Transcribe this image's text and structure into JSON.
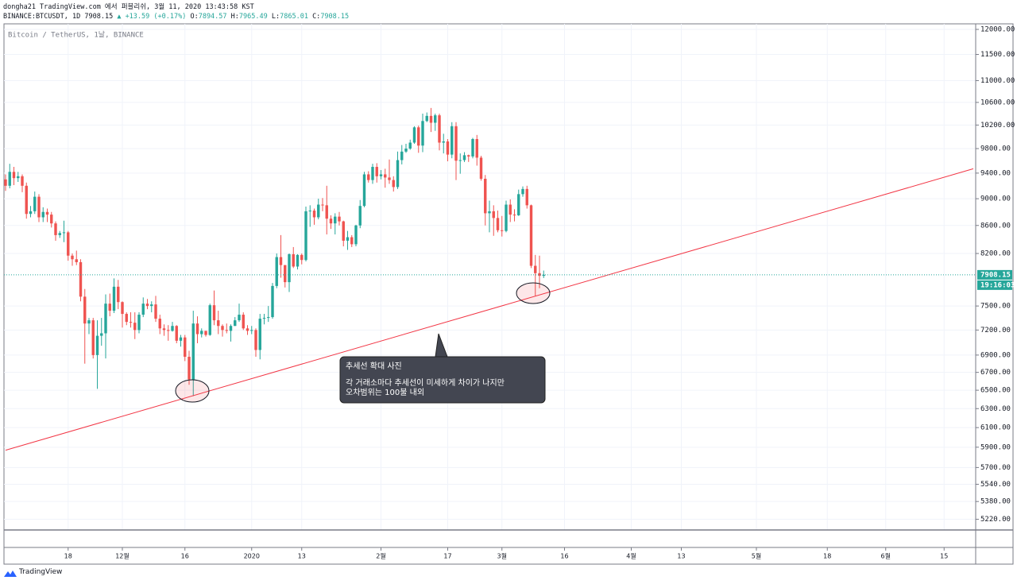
{
  "header": {
    "published": "dongha21 TradingView.com 에서 퍼블리쉬, 3월 11, 2020 13:43:58 KST",
    "symbol": "BINANCE:BTCUSDT, 1D",
    "arrow": "▲",
    "change": "+13.59 (+0.17%)",
    "ohlc_labels": [
      "O:",
      "H:",
      "L:",
      "C:"
    ]
  },
  "logo": "TradingView",
  "annotation": {
    "title": "추세선 확대 사진",
    "lines": [
      "각 거래소마다 추세선이 미세하게 차이가 나지만",
      "오차범위는 100불 내외"
    ]
  },
  "chart_data": {
    "type": "candlestick",
    "title": "Bitcoin / TetherUS, 1날, BINANCE",
    "countdown": "19:16:03",
    "up_color": "#26a69a",
    "down_color": "#ef5350",
    "log_scale": true,
    "grid": true,
    "x": [
      "2019-11-03",
      "2019-11-04",
      "2019-11-05",
      "2019-11-06",
      "2019-11-07",
      "2019-11-08",
      "2019-11-09",
      "2019-11-10",
      "2019-11-11",
      "2019-11-12",
      "2019-11-13",
      "2019-11-14",
      "2019-11-15",
      "2019-11-16",
      "2019-11-17",
      "2019-11-18",
      "2019-11-19",
      "2019-11-20",
      "2019-11-21",
      "2019-11-22",
      "2019-11-23",
      "2019-11-24",
      "2019-11-25",
      "2019-11-26",
      "2019-11-27",
      "2019-11-28",
      "2019-11-29",
      "2019-11-30",
      "2019-12-01",
      "2019-12-02",
      "2019-12-03",
      "2019-12-04",
      "2019-12-05",
      "2019-12-06",
      "2019-12-07",
      "2019-12-08",
      "2019-12-09",
      "2019-12-10",
      "2019-12-11",
      "2019-12-12",
      "2019-12-13",
      "2019-12-14",
      "2019-12-15",
      "2019-12-16",
      "2019-12-17",
      "2019-12-18",
      "2019-12-19",
      "2019-12-20",
      "2019-12-21",
      "2019-12-22",
      "2019-12-23",
      "2019-12-24",
      "2019-12-25",
      "2019-12-26",
      "2019-12-27",
      "2019-12-28",
      "2019-12-29",
      "2019-12-30",
      "2019-12-31",
      "2020-01-01",
      "2020-01-02",
      "2020-01-03",
      "2020-01-04",
      "2020-01-05",
      "2020-01-06",
      "2020-01-07",
      "2020-01-08",
      "2020-01-09",
      "2020-01-10",
      "2020-01-11",
      "2020-01-12",
      "2020-01-13",
      "2020-01-14",
      "2020-01-15",
      "2020-01-16",
      "2020-01-17",
      "2020-01-18",
      "2020-01-19",
      "2020-01-20",
      "2020-01-21",
      "2020-01-22",
      "2020-01-23",
      "2020-01-24",
      "2020-01-25",
      "2020-01-26",
      "2020-01-27",
      "2020-01-28",
      "2020-01-29",
      "2020-01-30",
      "2020-01-31",
      "2020-02-01",
      "2020-02-02",
      "2020-02-03",
      "2020-02-04",
      "2020-02-05",
      "2020-02-06",
      "2020-02-07",
      "2020-02-08",
      "2020-02-09",
      "2020-02-10",
      "2020-02-11",
      "2020-02-12",
      "2020-02-13",
      "2020-02-14",
      "2020-02-15",
      "2020-02-16",
      "2020-02-17",
      "2020-02-18",
      "2020-02-19",
      "2020-02-20",
      "2020-02-21",
      "2020-02-22",
      "2020-02-23",
      "2020-02-24",
      "2020-02-25",
      "2020-02-26",
      "2020-02-27",
      "2020-02-28",
      "2020-02-29",
      "2020-03-01",
      "2020-03-02",
      "2020-03-03",
      "2020-03-04",
      "2020-03-05",
      "2020-03-06",
      "2020-03-07",
      "2020-03-08",
      "2020-03-09",
      "2020-03-10",
      "2020-03-11"
    ],
    "open": [
      9300,
      9200,
      9420,
      9320,
      9350,
      9200,
      8770,
      8810,
      9030,
      8720,
      8800,
      8760,
      8630,
      8460,
      8490,
      8500,
      8170,
      8120,
      8080,
      7620,
      7280,
      7320,
      6900,
      7130,
      7160,
      7530,
      7440,
      7750,
      7550,
      7400,
      7300,
      7290,
      7200,
      7390,
      7530,
      7500,
      7520,
      7340,
      7220,
      7200,
      7190,
      7250,
      7070,
      7110,
      6880,
      6620,
      7280,
      7150,
      7190,
      7140,
      7510,
      7320,
      7250,
      7200,
      7190,
      7250,
      7320,
      7390,
      7220,
      7190,
      7200,
      6960,
      7340,
      7350,
      7360,
      7760,
      8150,
      8040,
      7810,
      8190,
      8020,
      8180,
      8110,
      8810,
      8820,
      8720,
      8910,
      8900,
      8700,
      8630,
      8730,
      8660,
      8380,
      8430,
      8330,
      8600,
      8890,
      9380,
      9290,
      9500,
      9350,
      9380,
      9330,
      9290,
      9180,
      9610,
      9750,
      9800,
      9900,
      10160,
      9850,
      10270,
      10360,
      10240,
      10370,
      9900,
      9920,
      9700,
      10180,
      9600,
      9610,
      9690,
      9670,
      9960,
      9650,
      9310,
      8780,
      8810,
      8710,
      8530,
      8520,
      8910,
      8760,
      8750,
      9070,
      9150,
      8900,
      8030,
      7930,
      7894.57
    ],
    "high": [
      9380,
      9550,
      9500,
      9420,
      9380,
      9250,
      8890,
      9110,
      9070,
      8870,
      8850,
      8800,
      8660,
      8520,
      8670,
      8520,
      8200,
      8240,
      8120,
      7720,
      7350,
      7350,
      7320,
      7350,
      7650,
      7660,
      7860,
      7840,
      7560,
      7420,
      7420,
      7420,
      7420,
      7610,
      7590,
      7560,
      7630,
      7390,
      7270,
      7260,
      7300,
      7260,
      7140,
      7140,
      6950,
      7440,
      7370,
      7220,
      7190,
      7530,
      7700,
      7440,
      7270,
      7280,
      7270,
      7360,
      7530,
      7420,
      7260,
      7250,
      7220,
      7400,
      7400,
      7500,
      7800,
      8200,
      8460,
      8040,
      8200,
      8290,
      8190,
      8200,
      8880,
      8900,
      8850,
      9000,
      9010,
      9200,
      8750,
      8780,
      8800,
      8670,
      8520,
      8460,
      8610,
      8980,
      9420,
      9430,
      9550,
      9560,
      9450,
      9470,
      9620,
      9350,
      9750,
      9860,
      9880,
      9950,
      10180,
      10190,
      10400,
      10420,
      10500,
      10400,
      10400,
      10050,
      9960,
      10250,
      10250,
      9720,
      9740,
      9700,
      9980,
      10030,
      9680,
      9370,
      8970,
      8900,
      8820,
      8740,
      8970,
      8990,
      8840,
      9140,
      9190,
      9200,
      8910,
      8180,
      8170,
      7965.49
    ],
    "low": [
      9120,
      9160,
      9210,
      9260,
      9100,
      8700,
      8720,
      8770,
      8650,
      8650,
      8650,
      8570,
      8380,
      8420,
      8360,
      8100,
      8030,
      8040,
      7560,
      6800,
      7150,
      6860,
      6515,
      7010,
      6860,
      7370,
      7410,
      7460,
      7230,
      7260,
      7230,
      7090,
      7160,
      7360,
      7460,
      7420,
      7300,
      7150,
      7130,
      7070,
      7180,
      7040,
      7000,
      6830,
      6560,
      6435,
      7040,
      7110,
      7120,
      7130,
      7260,
      7150,
      7120,
      7160,
      7060,
      7250,
      7300,
      7200,
      7140,
      7150,
      6880,
      6850,
      7270,
      7300,
      7340,
      7730,
      7870,
      7740,
      7680,
      8000,
      7980,
      8050,
      8090,
      8580,
      8610,
      8690,
      8810,
      8470,
      8550,
      8470,
      8600,
      8300,
      8250,
      8290,
      8300,
      8560,
      8870,
      9250,
      9230,
      9250,
      9300,
      9170,
      9230,
      9110,
      9150,
      9540,
      9730,
      9780,
      9880,
      9730,
      9740,
      10250,
      10080,
      10100,
      9770,
      9720,
      9590,
      9640,
      9290,
      9390,
      9580,
      9580,
      9640,
      9520,
      9280,
      8600,
      8500,
      8450,
      8500,
      8440,
      8500,
      8650,
      8660,
      8740,
      9030,
      8850,
      8000,
      7630,
      7730,
      7865.01
    ],
    "close": [
      9200,
      9420,
      9320,
      9350,
      9200,
      8770,
      8810,
      9030,
      8720,
      8800,
      8760,
      8630,
      8460,
      8490,
      8500,
      8170,
      8120,
      8080,
      7620,
      7280,
      7320,
      6900,
      7130,
      7160,
      7530,
      7440,
      7750,
      7550,
      7400,
      7300,
      7290,
      7200,
      7390,
      7530,
      7500,
      7520,
      7340,
      7220,
      7200,
      7190,
      7250,
      7070,
      7110,
      6880,
      6620,
      7280,
      7150,
      7190,
      7140,
      7510,
      7320,
      7250,
      7200,
      7190,
      7250,
      7320,
      7390,
      7220,
      7190,
      7200,
      6960,
      7340,
      7350,
      7360,
      7760,
      8150,
      8040,
      7810,
      8190,
      8020,
      8180,
      8110,
      8810,
      8820,
      8720,
      8910,
      8900,
      8700,
      8630,
      8730,
      8660,
      8380,
      8430,
      8330,
      8600,
      8890,
      9380,
      9290,
      9500,
      9350,
      9380,
      9330,
      9290,
      9180,
      9610,
      9750,
      9800,
      9900,
      10160,
      9850,
      10270,
      10360,
      10240,
      10370,
      9900,
      9920,
      9700,
      10180,
      9600,
      9610,
      9690,
      9670,
      9960,
      9650,
      9310,
      8780,
      8810,
      8710,
      8530,
      8520,
      8910,
      8760,
      8750,
      9070,
      9150,
      8900,
      8030,
      7930,
      7894.57,
      7908.15
    ],
    "trendline": {
      "x": [
        "2019-11-03",
        "2020-06-22"
      ],
      "y": [
        5870,
        9470
      ],
      "color": "#f23645"
    },
    "xlim": [
      "2019-11-03",
      "2020-06-22"
    ],
    "xticks": [
      {
        "value": "2019-11-18",
        "label": "18"
      },
      {
        "value": "2019-12-01",
        "label": "12월"
      },
      {
        "value": "2019-12-16",
        "label": "16"
      },
      {
        "value": "2020-01-01",
        "label": "2020"
      },
      {
        "value": "2020-01-13",
        "label": "13"
      },
      {
        "value": "2020-02-01",
        "label": "2월"
      },
      {
        "value": "2020-02-17",
        "label": "17"
      },
      {
        "value": "2020-03-01",
        "label": "3월"
      },
      {
        "value": "2020-03-16",
        "label": "16"
      },
      {
        "value": "2020-04-01",
        "label": "4월"
      },
      {
        "value": "2020-04-13",
        "label": "13"
      },
      {
        "value": "2020-05-01",
        "label": "5월"
      },
      {
        "value": "2020-05-18",
        "label": "18"
      },
      {
        "value": "2020-06-01",
        "label": "6월"
      },
      {
        "value": "2020-06-15",
        "label": "15"
      }
    ],
    "ylim": [
      5126,
      12114
    ],
    "yticks": [
      {
        "value": 12000,
        "label": "12000.00"
      },
      {
        "value": 11500,
        "label": "11500.00"
      },
      {
        "value": 11000,
        "label": "11000.00"
      },
      {
        "value": 10600,
        "label": "10600.00"
      },
      {
        "value": 10200,
        "label": "10200.00"
      },
      {
        "value": 9800,
        "label": "9800.00"
      },
      {
        "value": 9400,
        "label": "9400.00"
      },
      {
        "value": 9000,
        "label": "9000.00"
      },
      {
        "value": 8600,
        "label": "8600.00"
      },
      {
        "value": 8200,
        "label": "8200.00"
      },
      {
        "value": 7500,
        "label": "7500.00"
      },
      {
        "value": 7200,
        "label": "7200.00"
      },
      {
        "value": 6900,
        "label": "6900.00"
      },
      {
        "value": 6700,
        "label": "6700.00"
      },
      {
        "value": 6500,
        "label": "6500.00"
      },
      {
        "value": 6300,
        "label": "6300.00"
      },
      {
        "value": 6100,
        "label": "6100.00"
      },
      {
        "value": 5900,
        "label": "5900.00"
      },
      {
        "value": 5700,
        "label": "5700.00"
      },
      {
        "value": 5540,
        "label": "5540.00"
      },
      {
        "value": 5380,
        "label": "5380.00"
      },
      {
        "value": 5220,
        "label": "5220.00"
      }
    ]
  }
}
